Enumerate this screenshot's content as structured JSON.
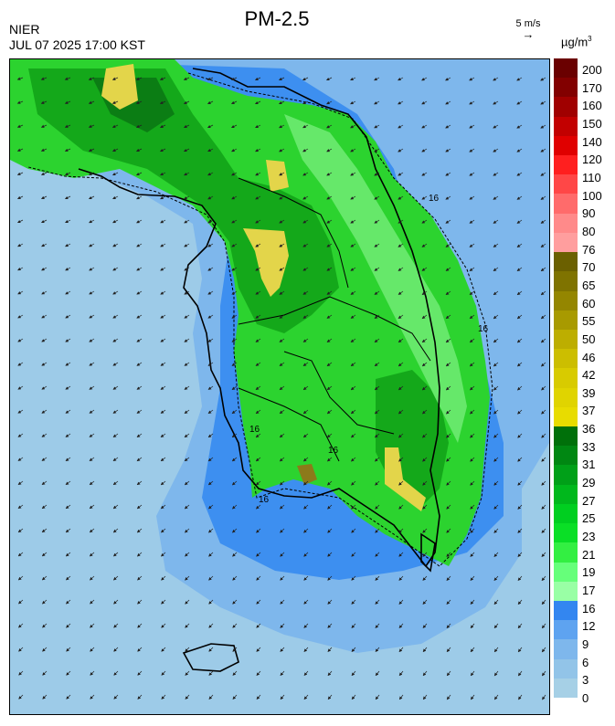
{
  "title": "PM-2.5",
  "agency": "NIER",
  "datetime": "JUL 07 2025 17:00 KST",
  "wind_scale": {
    "label": "5 m/s",
    "icon": "arrow-right-icon"
  },
  "unit": {
    "base": "µg/m",
    "exp": "3"
  },
  "colorbar": {
    "labels": [
      "200",
      "170",
      "160",
      "150",
      "140",
      "120",
      "110",
      "100",
      "90",
      "80",
      "76",
      "70",
      "65",
      "60",
      "55",
      "50",
      "46",
      "42",
      "39",
      "37",
      "36",
      "33",
      "31",
      "29",
      "27",
      "25",
      "23",
      "21",
      "19",
      "17",
      "16",
      "12",
      "9",
      "6",
      "3",
      "0"
    ],
    "colors": [
      "#6a0000",
      "#820000",
      "#a00000",
      "#c20000",
      "#e00000",
      "#ff1f1f",
      "#ff4747",
      "#ff6b6b",
      "#ff8a8a",
      "#ff9e9e",
      "#6b6000",
      "#7f7300",
      "#948600",
      "#a89a00",
      "#bdae00",
      "#ccbe00",
      "#d8cb00",
      "#e0d400",
      "#e8dc00",
      "#00700a",
      "#008712",
      "#00a018",
      "#00b81c",
      "#00cf20",
      "#0adf26",
      "#33ef42",
      "#66ff7a",
      "#99ffa5",
      "#3386f0",
      "#5ea3f0",
      "#7eb7ec",
      "#92c4e8",
      "#a6d0e6"
    ]
  },
  "map_colors": {
    "sea_far": "#9dcbe8",
    "sea_mid": "#7eb7ec",
    "sea_near": "#3d8ff0",
    "land_base": "#2cd32f",
    "land_dark": "#14a81a",
    "land_darker": "#0b7d14",
    "land_light": "#66e86a",
    "yellow": "#e3d54a",
    "olive": "#8c7a1a"
  },
  "contour_label": "16"
}
